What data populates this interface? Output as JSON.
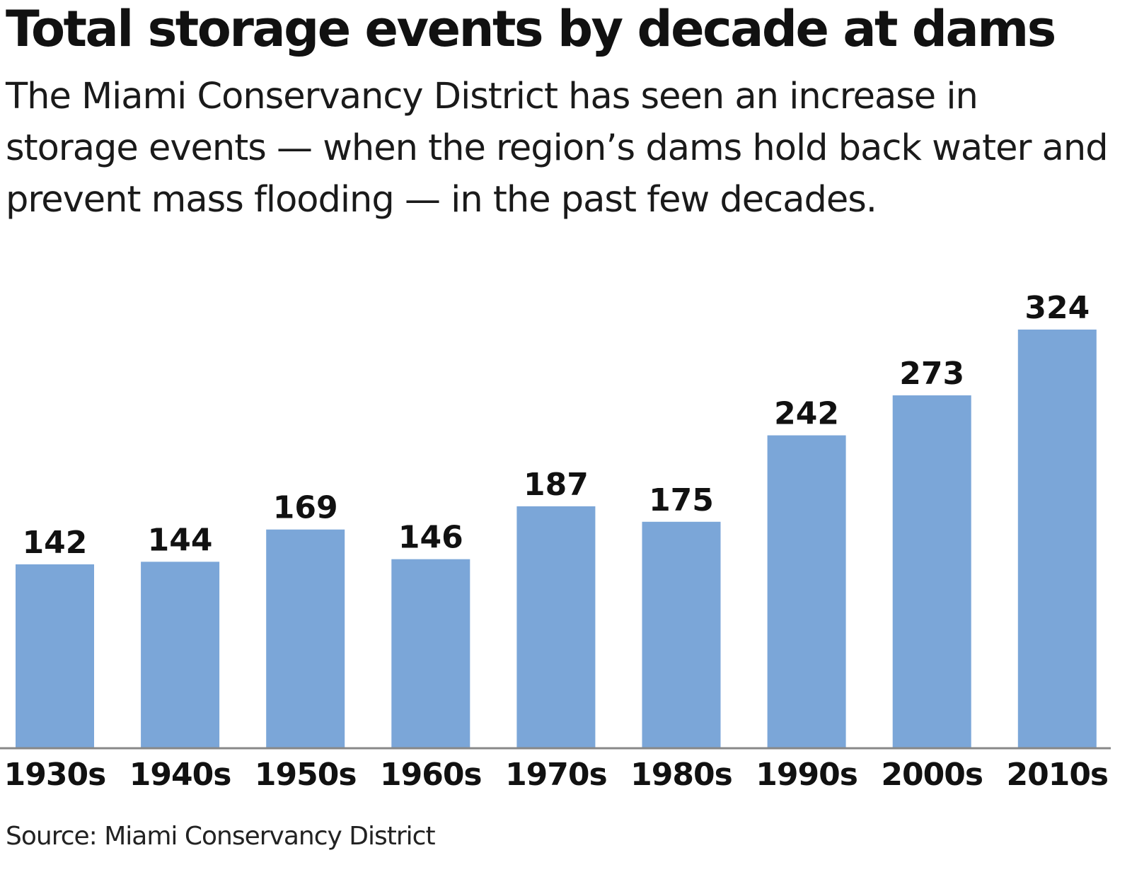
{
  "chart_data": {
    "type": "bar",
    "title": "Total storage events by decade at dams",
    "subtitle": "The Miami Conservancy District has seen an increase in storage events — when the region’s dams hold back water and prevent mass flooding — in the past few decades.",
    "categories": [
      "1930s",
      "1940s",
      "1950s",
      "1960s",
      "1970s",
      "1980s",
      "1990s",
      "2000s",
      "2010s"
    ],
    "values": [
      142,
      144,
      169,
      146,
      187,
      175,
      242,
      273,
      324
    ],
    "xlabel": "",
    "ylabel": "",
    "ylim": [
      0,
      324
    ],
    "grid": false,
    "source": "Source: Miami Conservancy District",
    "colors": {
      "bar": "#7ba6d8",
      "baseline": "#888888"
    }
  }
}
